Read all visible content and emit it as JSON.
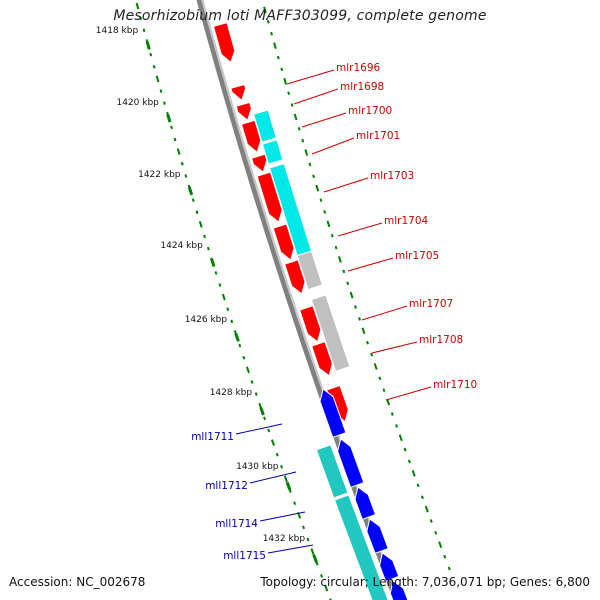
{
  "title": "Mesorhizobium loti MAFF303099, complete genome",
  "footer": {
    "accession": "Accession: NC_002678",
    "topology": "Topology: circular; Length: 7,036,071 bp; Genes: 6,800"
  },
  "colors": {
    "backbone": "#808080",
    "tick": "#008000",
    "forward_gene": "#ff0000",
    "reverse_gene": "#0000ff",
    "forward_label": "#cc0000",
    "reverse_label": "#0000aa",
    "cds_forward": "#00e8e8",
    "cds_reverse": "#20c8c0",
    "cds_other": "#c0c0c0"
  },
  "scale_labels": [
    "1418 kbp",
    "1420 kbp",
    "1422 kbp",
    "1424 kbp",
    "1426 kbp",
    "1428 kbp",
    "1430 kbp",
    "1432 kbp"
  ],
  "gene_labels": {
    "forward": [
      "mlr1696",
      "mlr1698",
      "mlr1700",
      "mlr1701",
      "mlr1703",
      "mlr1704",
      "mlr1705",
      "mlr1707",
      "mlr1708",
      "mlr1710"
    ],
    "reverse": [
      "mll1711",
      "mll1712",
      "mll1714",
      "mll1715"
    ]
  }
}
